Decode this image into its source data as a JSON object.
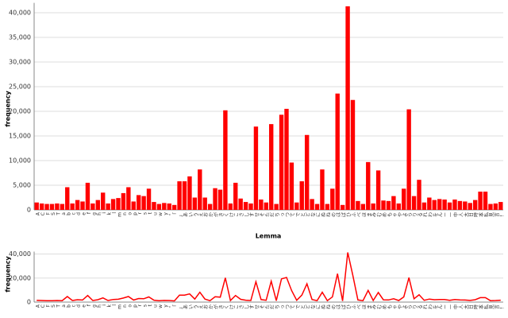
{
  "chart_data": {
    "type": "bar",
    "x_label": "Lemma",
    "y_label": "frequency",
    "color": "#ff0000",
    "grid": true,
    "categories": [
      "A",
      "C",
      "F",
      "S",
      "T",
      "a",
      "b",
      "c",
      "d",
      "e",
      "f",
      "g",
      "h",
      "i",
      "k",
      "l",
      "m",
      "n",
      "o",
      "p",
      "r",
      "s",
      "t",
      "u",
      "w",
      "y",
      "・",
      "「",
      "」",
      "あ",
      "い",
      "う",
      "え",
      "お",
      "か",
      "が",
      "き",
      "く",
      "け",
      "こ",
      "さ",
      "し",
      "す",
      "せ",
      "そ",
      "た",
      "だ",
      "ち",
      "っ",
      "つ",
      "て",
      "で",
      "と",
      "ど",
      "な",
      "に",
      "ぬ",
      "ね",
      "の",
      "は",
      "ば",
      "ひ",
      "ふ",
      "べ",
      "ほ",
      "ま",
      "み",
      "む",
      "め",
      "も",
      "ゃ",
      "や",
      "よ",
      "ら",
      "り",
      "る",
      "れ",
      "わ",
      "を",
      "ん",
      "ー",
      "一",
      "中",
      "人",
      "大",
      "日",
      "時",
      "本",
      "私",
      "見",
      "言",
      "！"
    ],
    "values": [
      1500,
      1300,
      1200,
      1200,
      1300,
      1200,
      4600,
      1300,
      2000,
      1700,
      5500,
      1300,
      2000,
      3500,
      1300,
      2200,
      2400,
      3400,
      4600,
      1700,
      3000,
      2800,
      4300,
      1600,
      1200,
      1400,
      1300,
      1000,
      5800,
      5800,
      6800,
      2500,
      8200,
      2500,
      1200,
      4400,
      4100,
      20200,
      1300,
      5500,
      2300,
      1600,
      1300,
      16900,
      2100,
      1500,
      17400,
      1200,
      19300,
      20500,
      9600,
      1500,
      5800,
      15200,
      2200,
      1200,
      8200,
      1200,
      4300,
      23600,
      1000,
      41300,
      22300,
      1800,
      1200,
      9700,
      1300,
      8000,
      1900,
      1800,
      2800,
      1300,
      4300,
      20400,
      2800,
      6100,
      1500,
      2500,
      2000,
      2200,
      2100,
      1500,
      2100,
      1800,
      1700,
      1400,
      2000,
      3700,
      3700,
      1200,
      1300,
      1600
    ],
    "ylim": [
      0,
      42000
    ],
    "yticks": [
      0,
      {
        "value": 5000,
        "label": "5,000"
      },
      {
        "value": 10000,
        "label": "10,000"
      },
      {
        "value": 15000,
        "label": "15,000"
      },
      {
        "value": 20000,
        "label": "20,000"
      },
      {
        "value": 25000,
        "label": "25,000"
      },
      {
        "value": 30000,
        "label": "30,000"
      },
      {
        "value": 35000,
        "label": "35,000"
      },
      {
        "value": 40000,
        "label": "40,000"
      }
    ],
    "overview": {
      "type": "line",
      "y_label": "frequency",
      "ylim": [
        0,
        42000
      ],
      "yticks": [
        0,
        {
          "value": 20000,
          "label": "20,000"
        },
        {
          "value": 40000,
          "label": "40,000"
        }
      ]
    }
  }
}
